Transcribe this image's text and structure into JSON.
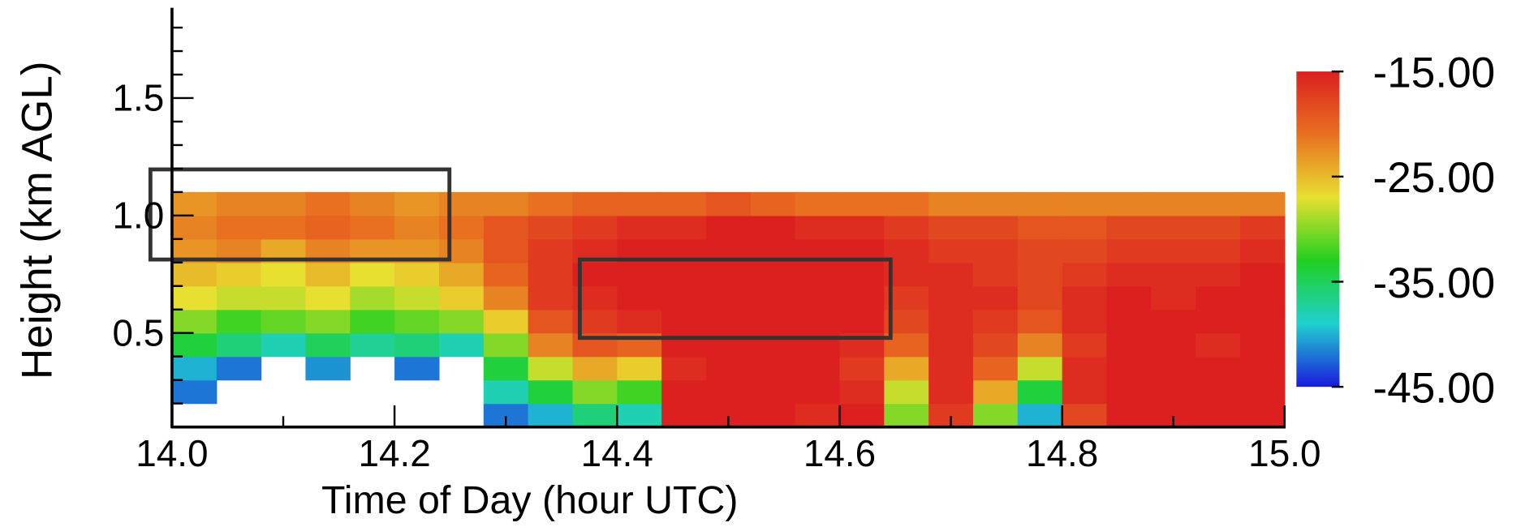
{
  "chart_data": {
    "type": "heatmap",
    "x_label": "Time of Day (hour UTC)",
    "y_label": "Height (km AGL)",
    "x": [
      14.02,
      14.06,
      14.1,
      14.14,
      14.18,
      14.22,
      14.26,
      14.3,
      14.34,
      14.38,
      14.42,
      14.46,
      14.5,
      14.54,
      14.58,
      14.62,
      14.66,
      14.7,
      14.74,
      14.78,
      14.82,
      14.86,
      14.9,
      14.94,
      14.98
    ],
    "y": [
      0.15,
      0.25,
      0.35,
      0.45,
      0.55,
      0.65,
      0.75,
      0.85,
      0.95,
      1.05
    ],
    "z": [
      [
        null,
        null,
        null,
        null,
        null,
        null,
        null,
        -42,
        -40,
        -36,
        -38,
        -15,
        -15,
        -15,
        -16,
        -15,
        -30,
        -17,
        -30,
        -40,
        -18,
        -15,
        -15,
        -15,
        -15
      ],
      [
        -42,
        null,
        null,
        null,
        null,
        null,
        null,
        -38,
        -34,
        -30,
        -32,
        -15,
        -15,
        -15,
        -15,
        -16,
        -28,
        -16,
        -24,
        -34,
        -16,
        -15,
        -15,
        -15,
        -15
      ],
      [
        -40,
        -42,
        null,
        -41,
        null,
        -42,
        null,
        -34,
        -28,
        -24,
        -26,
        -16,
        -15,
        -15,
        -15,
        -17,
        -24,
        -16,
        -20,
        -28,
        -16,
        -15,
        -15,
        -15,
        -15
      ],
      [
        -34,
        -36,
        -38,
        -35,
        -37,
        -36,
        -38,
        -30,
        -22,
        -19,
        -20,
        -15,
        -15,
        -15,
        -15,
        -16,
        -20,
        -16,
        -18,
        -22,
        -17,
        -15,
        -15,
        -16,
        -15
      ],
      [
        -30,
        -32,
        -31,
        -30,
        -32,
        -31,
        -30,
        -26,
        -19,
        -17,
        -16,
        -15,
        -15,
        -15,
        -15,
        -15,
        -18,
        -16,
        -17,
        -19,
        -16,
        -15,
        -15,
        -15,
        -15
      ],
      [
        -27,
        -28,
        -28,
        -27,
        -29,
        -28,
        -26,
        -22,
        -17,
        -16,
        -15,
        -15,
        -15,
        -15,
        -15,
        -15,
        -17,
        -16,
        -16,
        -18,
        -16,
        -15,
        -16,
        -15,
        -15
      ],
      [
        -25,
        -26,
        -27,
        -25,
        -27,
        -26,
        -24,
        -20,
        -17,
        -15,
        -15,
        -15,
        -15,
        -15,
        -15,
        -15,
        -16,
        -16,
        -17,
        -18,
        -17,
        -16,
        -16,
        -16,
        -15
      ],
      [
        -23,
        -22,
        -24,
        -22,
        -23,
        -23,
        -22,
        -19,
        -17,
        -16,
        -15,
        -15,
        -15,
        -15,
        -15,
        -15,
        -16,
        -17,
        -17,
        -18,
        -18,
        -17,
        -17,
        -17,
        -16
      ],
      [
        -22,
        -21,
        -21,
        -20,
        -21,
        -22,
        -21,
        -19,
        -18,
        -17,
        -16,
        -16,
        -15,
        -15,
        -16,
        -16,
        -17,
        -18,
        -18,
        -19,
        -19,
        -18,
        -18,
        -18,
        -17
      ],
      [
        -23,
        -22,
        -22,
        -21,
        -22,
        -23,
        -22,
        -22,
        -21,
        -20,
        -20,
        -20,
        -19,
        -20,
        -21,
        -21,
        -21,
        -22,
        -22,
        -22,
        -22,
        -22,
        -22,
        -22,
        -22
      ]
    ],
    "xlim": [
      14.0,
      15.0
    ],
    "xticks": [
      {
        "value": 14.0,
        "label": "14.0"
      },
      14.2,
      14.4,
      14.6,
      14.8,
      {
        "value": 15.0,
        "label": "15.0"
      }
    ],
    "xminorticks": [
      14.1,
      14.3,
      14.5,
      14.7,
      14.9
    ],
    "ylim": [
      0.1,
      1.88
    ],
    "yticks": [
      0.5,
      {
        "value": 1.0,
        "label": "1.0"
      },
      1.5
    ],
    "yminorticks": [
      0.2,
      0.3,
      0.4,
      0.6,
      0.7,
      0.8,
      0.9,
      1.1,
      1.2,
      1.3,
      1.4,
      1.6,
      1.7,
      1.8
    ],
    "clim": [
      -45,
      -15
    ],
    "cticks": [
      {
        "value": -15,
        "label": "-15.00"
      },
      {
        "value": -25,
        "label": "-25.00"
      },
      {
        "value": -35,
        "label": "-35.00"
      },
      {
        "value": -45,
        "label": "-45.00"
      }
    ],
    "colormap": [
      "#1a1adc",
      "#20d0d0",
      "#20d020",
      "#e8e030",
      "#e87020",
      "#dc2020"
    ]
  }
}
